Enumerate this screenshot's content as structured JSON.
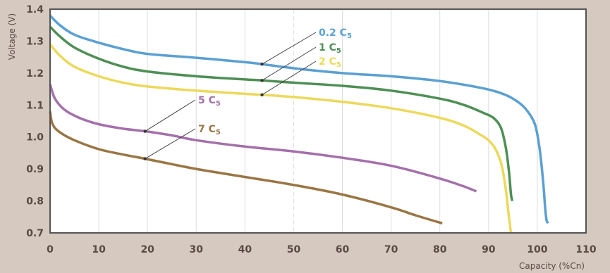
{
  "chart_data": {
    "type": "line",
    "title": "",
    "xlabel": "Capacity (%Cn)",
    "ylabel": "Voltage (V)",
    "xlim": [
      0,
      110
    ],
    "ylim": [
      0.7,
      1.4
    ],
    "x_ticks": [
      0,
      10,
      20,
      30,
      40,
      50,
      60,
      70,
      80,
      90,
      100,
      110
    ],
    "x_tick_labels": [
      "0",
      "10",
      "20",
      "30",
      "40",
      "50",
      "60",
      "70",
      "80",
      "90",
      "100",
      "110"
    ],
    "y_ticks": [
      0.7,
      0.8,
      0.9,
      1.0,
      1.1,
      1.2,
      1.3,
      1.4
    ],
    "y_tick_labels": [
      "0.7",
      "0.8",
      "0.9",
      "1.0",
      "1.1",
      "1.2",
      "1.3",
      "1.4"
    ],
    "grid": "vertical",
    "series": [
      {
        "name": "0.2 C",
        "subscript": "5",
        "color": "#5aa0d2",
        "x": [
          0,
          2,
          5,
          10,
          15,
          20,
          30,
          40,
          43.5,
          50,
          60,
          70,
          80,
          88,
          92,
          95,
          97.5,
          99.5,
          100.5,
          101.2,
          101.6,
          101.9,
          102.2
        ],
        "y": [
          1.38,
          1.35,
          1.32,
          1.295,
          1.275,
          1.26,
          1.248,
          1.234,
          1.228,
          1.215,
          1.2,
          1.19,
          1.175,
          1.155,
          1.14,
          1.12,
          1.09,
          1.04,
          0.96,
          0.86,
          0.78,
          0.74,
          0.73
        ]
      },
      {
        "name": "1 C",
        "subscript": "5",
        "color": "#4e8f55",
        "x": [
          0,
          2,
          5,
          10,
          15,
          20,
          30,
          40,
          43.5,
          50,
          60,
          70,
          80,
          85,
          89,
          91,
          92.5,
          93.5,
          94.2,
          94.6,
          94.9
        ],
        "y": [
          1.345,
          1.315,
          1.28,
          1.245,
          1.22,
          1.205,
          1.19,
          1.18,
          1.177,
          1.17,
          1.16,
          1.145,
          1.12,
          1.1,
          1.075,
          1.06,
          1.03,
          0.97,
          0.89,
          0.82,
          0.8
        ]
      },
      {
        "name": "2 C",
        "subscript": "5",
        "color": "#ecd95c",
        "x": [
          0,
          2,
          5,
          10,
          15,
          20,
          30,
          40,
          43.5,
          50,
          60,
          70,
          80,
          85,
          88,
          90,
          91.5,
          92.7,
          93.5,
          94.1,
          94.6
        ],
        "y": [
          1.29,
          1.255,
          1.22,
          1.19,
          1.17,
          1.158,
          1.145,
          1.135,
          1.132,
          1.125,
          1.11,
          1.09,
          1.06,
          1.035,
          1.01,
          0.99,
          0.96,
          0.91,
          0.84,
          0.76,
          0.7
        ]
      },
      {
        "name": "5 C",
        "subscript": "5",
        "color": "#a470aa",
        "x": [
          0,
          1,
          3,
          6,
          10,
          15,
          19.5,
          25,
          30,
          40,
          50,
          60,
          70,
          80,
          85,
          87.5
        ],
        "y": [
          1.165,
          1.12,
          1.085,
          1.06,
          1.04,
          1.026,
          1.018,
          1.005,
          0.99,
          0.97,
          0.955,
          0.935,
          0.91,
          0.87,
          0.845,
          0.83
        ]
      },
      {
        "name": "7 C",
        "subscript": "5",
        "color": "#9a7644",
        "x": [
          0,
          0.5,
          2,
          5,
          10,
          15,
          19.5,
          25,
          30,
          40,
          50,
          60,
          70,
          75,
          80.5
        ],
        "y": [
          1.08,
          1.04,
          1.015,
          0.99,
          0.962,
          0.945,
          0.932,
          0.915,
          0.9,
          0.875,
          0.85,
          0.82,
          0.78,
          0.755,
          0.73
        ]
      }
    ],
    "annotations": [
      {
        "series": 0,
        "x": 43.5,
        "y": 1.228
      },
      {
        "series": 1,
        "x": 43.5,
        "y": 1.177
      },
      {
        "series": 2,
        "x": 43.5,
        "y": 1.132
      },
      {
        "series": 3,
        "x": 19.5,
        "y": 1.018
      },
      {
        "series": 4,
        "x": 19.5,
        "y": 0.932
      }
    ]
  }
}
